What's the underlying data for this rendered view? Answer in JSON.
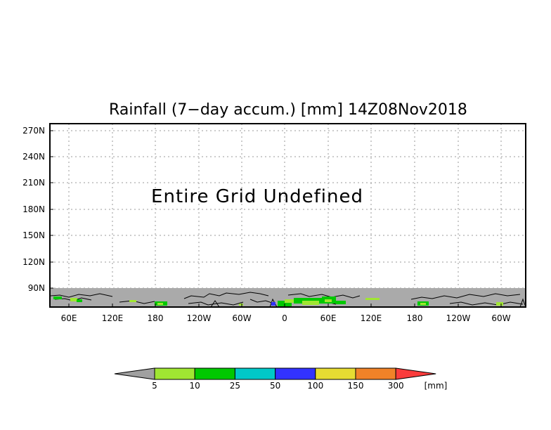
{
  "map": {
    "title": "Rainfall (7−day accum.) [mm] 14Z08Nov2018",
    "message": "Entire Grid Undefined",
    "y_ticks": [
      "270N",
      "240N",
      "210N",
      "180N",
      "150N",
      "120N",
      "90N"
    ],
    "x_ticks": [
      "60E",
      "120E",
      "180",
      "120W",
      "60W",
      "0",
      "60E",
      "120E",
      "180",
      "120W",
      "60W"
    ],
    "undefined_band_color": "#aaaaaa",
    "coastline_color": "#000000"
  },
  "colorbar": {
    "unit": "[mm]",
    "labels": [
      "5",
      "10",
      "25",
      "50",
      "100",
      "150",
      "300"
    ],
    "colors": [
      "#a0a0a0",
      "#a0e632",
      "#00c800",
      "#00c8c8",
      "#3232ff",
      "#e6dc32",
      "#f08228",
      "#fa3c3c"
    ]
  }
}
